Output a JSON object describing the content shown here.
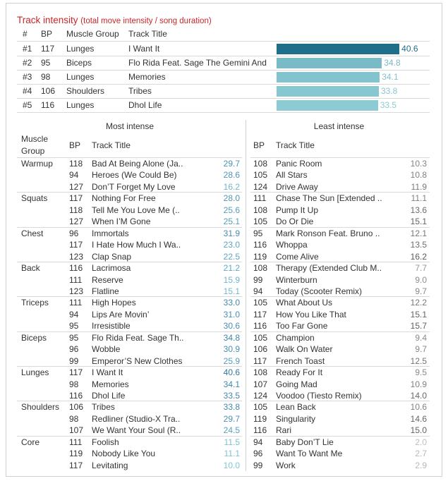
{
  "header": {
    "title": "Track intensity",
    "subtitle": "(total move intensity / song duration)"
  },
  "top": {
    "columns": [
      "#",
      "BP",
      "Muscle Group",
      "Track Title"
    ],
    "rows": [
      {
        "rank": "#1",
        "bp": 117,
        "group": "Lunges",
        "title": "I Want It",
        "value": 40.6
      },
      {
        "rank": "#2",
        "bp": 95,
        "group": "Biceps",
        "title": "Flo Rida Feat. Sage The Gemini And ...",
        "value": 34.8
      },
      {
        "rank": "#3",
        "bp": 98,
        "group": "Lunges",
        "title": "Memories",
        "value": 34.1
      },
      {
        "rank": "#4",
        "bp": 106,
        "group": "Shoulders",
        "title": "Tribes",
        "value": 33.8
      },
      {
        "rank": "#5",
        "bp": 116,
        "group": "Lunges",
        "title": "Dhol Life",
        "value": 33.5
      }
    ]
  },
  "lower": {
    "most_title": "Most intense",
    "least_title": "Least intense",
    "group_header": "Muscle Group",
    "most_columns": [
      "BP",
      "Track Title"
    ],
    "least_columns": [
      "BP",
      "Track Title"
    ],
    "groups": [
      {
        "name": "Warmup",
        "most": [
          {
            "bp": 118,
            "title": "Bad At Being Alone (Ja..",
            "value": "29.7"
          },
          {
            "bp": 94,
            "title": "Heroes (We Could Be)",
            "value": "28.6"
          },
          {
            "bp": 127,
            "title": "Don’T Forget My Love",
            "value": "16.2"
          }
        ],
        "least": [
          {
            "bp": 108,
            "title": "Panic Room",
            "value": "10.3"
          },
          {
            "bp": 105,
            "title": "All Stars",
            "value": "10.8"
          },
          {
            "bp": 124,
            "title": "Drive Away",
            "value": "11.9"
          }
        ]
      },
      {
        "name": "Squats",
        "most": [
          {
            "bp": 117,
            "title": "Nothing For Free",
            "value": "28.0"
          },
          {
            "bp": 118,
            "title": "Tell Me You Love Me (..",
            "value": "25.6"
          },
          {
            "bp": 127,
            "title": "When I’M Gone",
            "value": "25.1"
          }
        ],
        "least": [
          {
            "bp": 111,
            "title": "Chase The Sun [Extended ..",
            "value": "11.1"
          },
          {
            "bp": 108,
            "title": "Pump It Up",
            "value": "13.6"
          },
          {
            "bp": 105,
            "title": "Do Or Die",
            "value": "15.1"
          }
        ]
      },
      {
        "name": "Chest",
        "most": [
          {
            "bp": 96,
            "title": "Immortals",
            "value": "31.9"
          },
          {
            "bp": 117,
            "title": "I Hate How Much I Wa..",
            "value": "23.0"
          },
          {
            "bp": 123,
            "title": "Clap Snap",
            "value": "22.5"
          }
        ],
        "least": [
          {
            "bp": 95,
            "title": "Mark Ronson Feat. Bruno ..",
            "value": "12.1"
          },
          {
            "bp": 116,
            "title": "Whoppa",
            "value": "13.5"
          },
          {
            "bp": 119,
            "title": "Come Alive",
            "value": "16.2"
          }
        ]
      },
      {
        "name": "Back",
        "most": [
          {
            "bp": 116,
            "title": "Lacrimosa",
            "value": "21.2"
          },
          {
            "bp": 111,
            "title": "Reserve",
            "value": "15.9"
          },
          {
            "bp": 123,
            "title": "Flatline",
            "value": "15.1"
          }
        ],
        "least": [
          {
            "bp": 108,
            "title": "Therapy (Extended Club M..",
            "value": "7.7"
          },
          {
            "bp": 99,
            "title": "Winterburn",
            "value": "9.0"
          },
          {
            "bp": 94,
            "title": "Today (Scooter Remix)",
            "value": "9.7"
          }
        ]
      },
      {
        "name": "Triceps",
        "most": [
          {
            "bp": 111,
            "title": "High Hopes",
            "value": "33.0"
          },
          {
            "bp": 94,
            "title": "Lips Are Movin’",
            "value": "31.0"
          },
          {
            "bp": 95,
            "title": "Irresistible",
            "value": "30.6"
          }
        ],
        "least": [
          {
            "bp": 105,
            "title": "What About Us",
            "value": "12.2"
          },
          {
            "bp": 117,
            "title": "How You Like That",
            "value": "15.1"
          },
          {
            "bp": 116,
            "title": "Too Far Gone",
            "value": "15.7"
          }
        ]
      },
      {
        "name": "Biceps",
        "most": [
          {
            "bp": 95,
            "title": "Flo Rida Feat. Sage Th..",
            "value": "34.8"
          },
          {
            "bp": 96,
            "title": "Wobble",
            "value": "30.9"
          },
          {
            "bp": 99,
            "title": "Emperor’S New Clothes",
            "value": "25.9"
          }
        ],
        "least": [
          {
            "bp": 105,
            "title": "Champion",
            "value": "9.4"
          },
          {
            "bp": 106,
            "title": "Walk On Water",
            "value": "9.7"
          },
          {
            "bp": 117,
            "title": "French Toast",
            "value": "12.5"
          }
        ]
      },
      {
        "name": "Lunges",
        "most": [
          {
            "bp": 117,
            "title": "I Want It",
            "value": "40.6"
          },
          {
            "bp": 98,
            "title": "Memories",
            "value": "34.1"
          },
          {
            "bp": 116,
            "title": "Dhol Life",
            "value": "33.5"
          }
        ],
        "least": [
          {
            "bp": 108,
            "title": "Ready For It",
            "value": "9.5"
          },
          {
            "bp": 107,
            "title": "Going Mad",
            "value": "10.9"
          },
          {
            "bp": 124,
            "title": "Voodoo (Tiesto Remix)",
            "value": "14.0"
          }
        ]
      },
      {
        "name": "Shoulders",
        "most": [
          {
            "bp": 106,
            "title": "Tribes",
            "value": "33.8"
          },
          {
            "bp": 98,
            "title": "Redliner (Studio-X Tra..",
            "value": "29.7"
          },
          {
            "bp": 107,
            "title": "We Want Your Soul (R..",
            "value": "24.5"
          }
        ],
        "least": [
          {
            "bp": 105,
            "title": "Lean Back",
            "value": "10.6"
          },
          {
            "bp": 119,
            "title": "Singularity",
            "value": "14.6"
          },
          {
            "bp": 116,
            "title": "Rari",
            "value": "15.0"
          }
        ]
      },
      {
        "name": "Core",
        "most": [
          {
            "bp": 111,
            "title": "Foolish",
            "value": "11.5"
          },
          {
            "bp": 119,
            "title": "Nobody Like You",
            "value": "11.1"
          },
          {
            "bp": 117,
            "title": "Levitating",
            "value": "10.0"
          }
        ],
        "least": [
          {
            "bp": 94,
            "title": "Baby Don’T Lie",
            "value": "2.0"
          },
          {
            "bp": 96,
            "title": "Want To Want Me",
            "value": "2.7"
          },
          {
            "bp": 99,
            "title": "Work",
            "value": "2.9"
          }
        ]
      }
    ]
  }
}
